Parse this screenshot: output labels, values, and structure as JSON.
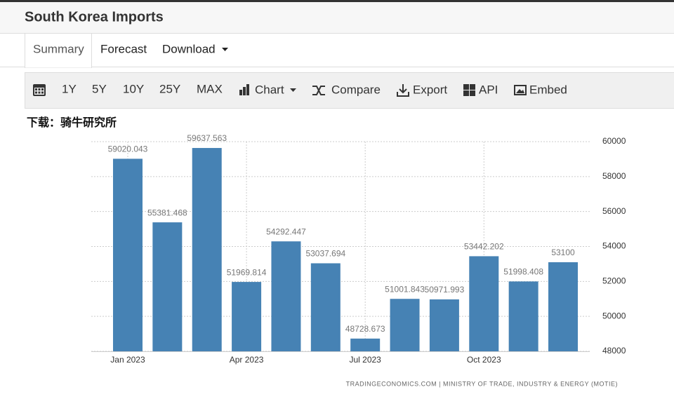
{
  "header": {
    "title": "South Korea Imports"
  },
  "tabs": [
    "Summary",
    "Forecast",
    "Download"
  ],
  "toolbar": [
    "1Y",
    "5Y",
    "10Y",
    "25Y",
    "MAX",
    "Chart",
    "Compare",
    "Export",
    "API",
    "Embed"
  ],
  "note": "下载：骑牛研究所",
  "chart_data": {
    "type": "bar",
    "categories": [
      "Jan 2023",
      null,
      null,
      "Apr 2023",
      null,
      null,
      "Jul 2023",
      null,
      null,
      "Oct 2023",
      null,
      null
    ],
    "values": [
      59020.043,
      55381.468,
      59637.563,
      51969.814,
      54292.447,
      53037.694,
      48728.673,
      51001.843,
      50971.993,
      53442.202,
      51998.408,
      53100
    ],
    "color": "#4682b4",
    "ylim": [
      48000,
      60000
    ],
    "yticks": [
      48000,
      50000,
      52000,
      54000,
      56000,
      58000,
      60000
    ],
    "grid": true,
    "source": "TRADINGECONOMICS.COM | MINISTRY OF TRADE, INDUSTRY & ENERGY (MOTIE)"
  }
}
